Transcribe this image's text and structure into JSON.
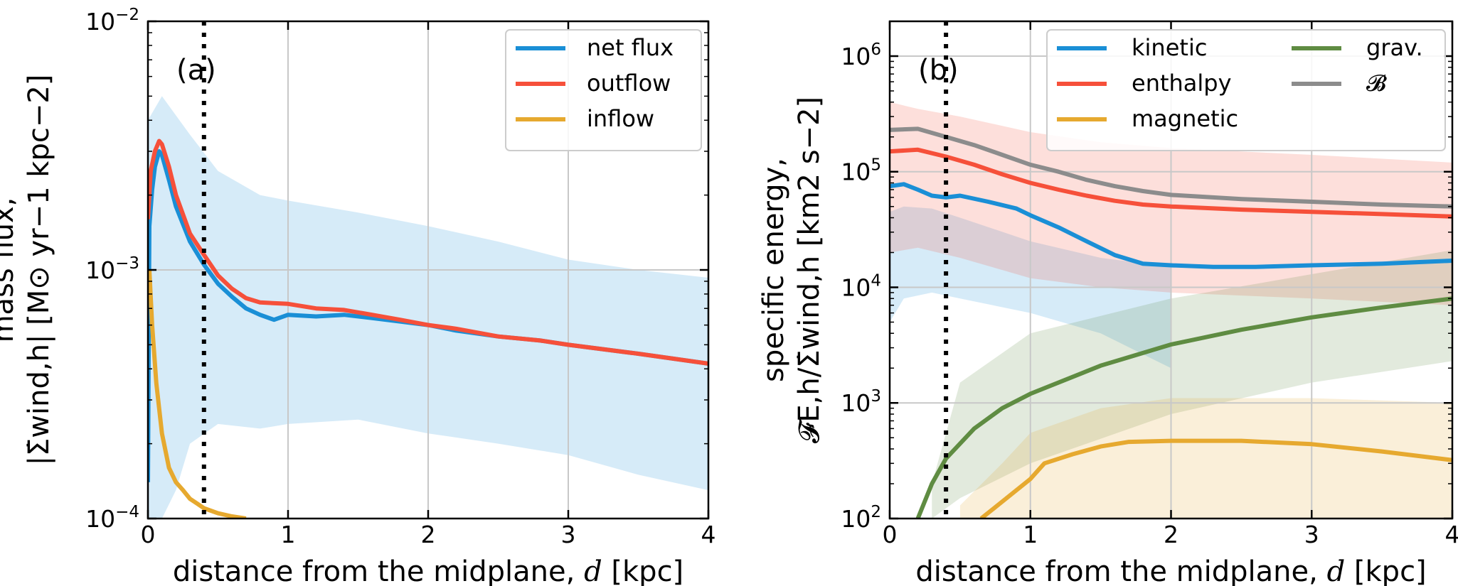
{
  "chart_data": [
    {
      "type": "line",
      "panel_label": "(a)",
      "xlabel": "distance from the midplane, d [kpc]",
      "ylabel_line1": "mass flux,",
      "ylabel_line2": "|Σ̇wind,h| [M⊙ yr−1 kpc−2]",
      "xlim": [
        0,
        4
      ],
      "ylim": [
        0.0001,
        0.01
      ],
      "yscale": "log",
      "xticks": [
        "0",
        "1",
        "2",
        "3",
        "4"
      ],
      "yticks": [
        {
          "base": "10",
          "exp": "−4",
          "value": 0.0001
        },
        {
          "base": "10",
          "exp": "−3",
          "value": 0.001
        },
        {
          "base": "10",
          "exp": "−2",
          "value": 0.01
        }
      ],
      "grid": true,
      "legend_position": "top-right",
      "vline_x": 0.4,
      "series": [
        {
          "name": "net flux",
          "color": "#1a8fd6",
          "points": [
            [
              0,
              0.00014
            ],
            [
              0.01,
              0.0015
            ],
            [
              0.03,
              0.0021
            ],
            [
              0.05,
              0.0026
            ],
            [
              0.08,
              0.003
            ],
            [
              0.1,
              0.0029
            ],
            [
              0.15,
              0.0023
            ],
            [
              0.2,
              0.0018
            ],
            [
              0.3,
              0.0013
            ],
            [
              0.4,
              0.00105
            ],
            [
              0.5,
              0.00088
            ],
            [
              0.6,
              0.00078
            ],
            [
              0.7,
              0.0007
            ],
            [
              0.8,
              0.00066
            ],
            [
              0.9,
              0.00063
            ],
            [
              1.0,
              0.00066
            ],
            [
              1.2,
              0.00065
            ],
            [
              1.4,
              0.00066
            ],
            [
              1.6,
              0.00064
            ],
            [
              1.8,
              0.00062
            ],
            [
              2.0,
              0.0006
            ],
            [
              2.2,
              0.00057
            ],
            [
              2.5,
              0.00054
            ],
            [
              2.8,
              0.00052
            ],
            [
              3.0,
              0.0005
            ],
            [
              3.5,
              0.00046
            ],
            [
              4.0,
              0.00042
            ]
          ]
        },
        {
          "name": "outflow",
          "color": "#f6503a",
          "points": [
            [
              0,
              0.0016
            ],
            [
              0.02,
              0.0025
            ],
            [
              0.05,
              0.003
            ],
            [
              0.08,
              0.0033
            ],
            [
              0.1,
              0.0032
            ],
            [
              0.15,
              0.0026
            ],
            [
              0.2,
              0.002
            ],
            [
              0.3,
              0.0014
            ],
            [
              0.4,
              0.00115
            ],
            [
              0.5,
              0.00095
            ],
            [
              0.6,
              0.00084
            ],
            [
              0.7,
              0.00077
            ],
            [
              0.8,
              0.00074
            ],
            [
              1.0,
              0.00073
            ],
            [
              1.2,
              0.0007
            ],
            [
              1.4,
              0.00069
            ],
            [
              1.6,
              0.00066
            ],
            [
              1.8,
              0.00063
            ],
            [
              2.0,
              0.0006
            ],
            [
              2.2,
              0.00058
            ],
            [
              2.5,
              0.00054
            ],
            [
              2.8,
              0.00052
            ],
            [
              3.0,
              0.0005
            ],
            [
              3.5,
              0.00046
            ],
            [
              4.0,
              0.00042
            ]
          ]
        },
        {
          "name": "inflow",
          "color": "#e6a92f",
          "points": [
            [
              0.01,
              0.001
            ],
            [
              0.03,
              0.0006
            ],
            [
              0.06,
              0.00035
            ],
            [
              0.1,
              0.00022
            ],
            [
              0.15,
              0.00016
            ],
            [
              0.2,
              0.00014
            ],
            [
              0.25,
              0.00013
            ],
            [
              0.3,
              0.00012
            ],
            [
              0.35,
              0.000115
            ],
            [
              0.4,
              0.00011
            ],
            [
              0.5,
              0.000105
            ],
            [
              0.6,
              0.000102
            ],
            [
              0.7,
              0.0001
            ]
          ]
        }
      ],
      "band": {
        "color": "#1a8fd6",
        "upper": [
          [
            0,
            0.004
          ],
          [
            0.1,
            0.005
          ],
          [
            0.3,
            0.0035
          ],
          [
            0.5,
            0.0025
          ],
          [
            0.8,
            0.002
          ],
          [
            1.0,
            0.0019
          ],
          [
            1.5,
            0.0017
          ],
          [
            2.0,
            0.0015
          ],
          [
            2.5,
            0.0013
          ],
          [
            3.0,
            0.0011
          ],
          [
            3.5,
            0.001
          ],
          [
            4.0,
            0.00093
          ]
        ],
        "lower": [
          [
            0,
            0.0001
          ],
          [
            0.1,
            0.0001
          ],
          [
            0.2,
            0.00013
          ],
          [
            0.3,
            0.0002
          ],
          [
            0.5,
            0.00024
          ],
          [
            0.8,
            0.00023
          ],
          [
            1.0,
            0.00024
          ],
          [
            1.5,
            0.00025
          ],
          [
            2.0,
            0.00022
          ],
          [
            2.5,
            0.0002
          ],
          [
            3.0,
            0.00018
          ],
          [
            3.5,
            0.00015
          ],
          [
            4.0,
            0.00013
          ]
        ]
      }
    },
    {
      "type": "line",
      "panel_label": "(b)",
      "xlabel": "distance from the midplane, d [kpc]",
      "ylabel_line1": "specific energy,",
      "ylabel_line2": "𝓕E,h/Σ̇wind,h [km2 s−2]",
      "xlim": [
        0,
        4
      ],
      "ylim": [
        100,
        2000000
      ],
      "yscale": "log",
      "xticks": [
        "0",
        "1",
        "2",
        "3",
        "4"
      ],
      "yticks": [
        {
          "base": "10",
          "exp": "2",
          "value": 100
        },
        {
          "base": "10",
          "exp": "3",
          "value": 1000
        },
        {
          "base": "10",
          "exp": "4",
          "value": 10000
        },
        {
          "base": "10",
          "exp": "5",
          "value": 100000
        },
        {
          "base": "10",
          "exp": "6",
          "value": 1000000
        }
      ],
      "grid": true,
      "legend_position": "top-right",
      "vline_x": 0.4,
      "series": [
        {
          "name": "kinetic",
          "color": "#1a8fd6",
          "points": [
            [
              0,
              75000
            ],
            [
              0.1,
              78000
            ],
            [
              0.2,
              70000
            ],
            [
              0.3,
              62000
            ],
            [
              0.4,
              60000
            ],
            [
              0.5,
              62000
            ],
            [
              0.7,
              55000
            ],
            [
              0.9,
              48000
            ],
            [
              1.0,
              42000
            ],
            [
              1.2,
              33000
            ],
            [
              1.4,
              25000
            ],
            [
              1.6,
              19000
            ],
            [
              1.8,
              16000
            ],
            [
              2.0,
              15500
            ],
            [
              2.3,
              15000
            ],
            [
              2.6,
              15000
            ],
            [
              3.0,
              15500
            ],
            [
              3.5,
              16000
            ],
            [
              4.0,
              17000
            ]
          ]
        },
        {
          "name": "enthalpy",
          "color": "#f6503a",
          "points": [
            [
              0,
              150000
            ],
            [
              0.2,
              155000
            ],
            [
              0.4,
              135000
            ],
            [
              0.6,
              115000
            ],
            [
              0.8,
              95000
            ],
            [
              1.0,
              80000
            ],
            [
              1.2,
              70000
            ],
            [
              1.4,
              62000
            ],
            [
              1.6,
              56000
            ],
            [
              1.8,
              52000
            ],
            [
              2.0,
              50000
            ],
            [
              2.5,
              47000
            ],
            [
              3.0,
              45000
            ],
            [
              3.5,
              43000
            ],
            [
              4.0,
              41000
            ]
          ]
        },
        {
          "name": "magnetic",
          "color": "#e6a92f",
          "points": [
            [
              0.65,
              100
            ],
            [
              0.8,
              140
            ],
            [
              1.0,
              220
            ],
            [
              1.1,
              300
            ],
            [
              1.3,
              360
            ],
            [
              1.5,
              420
            ],
            [
              1.7,
              460
            ],
            [
              2.0,
              470
            ],
            [
              2.5,
              470
            ],
            [
              3.0,
              440
            ],
            [
              3.5,
              380
            ],
            [
              4.0,
              320
            ]
          ]
        },
        {
          "name": "grav.",
          "color": "#5f8c42",
          "points": [
            [
              0.2,
              100
            ],
            [
              0.3,
              200
            ],
            [
              0.4,
              330
            ],
            [
              0.6,
              600
            ],
            [
              0.8,
              900
            ],
            [
              1.0,
              1200
            ],
            [
              1.5,
              2100
            ],
            [
              2.0,
              3200
            ],
            [
              2.5,
              4300
            ],
            [
              3.0,
              5500
            ],
            [
              3.5,
              6700
            ],
            [
              4.0,
              8000
            ]
          ]
        },
        {
          "name": "𝓑",
          "color": "#8c8c8c",
          "points": [
            [
              0,
              230000
            ],
            [
              0.2,
              235000
            ],
            [
              0.4,
              200000
            ],
            [
              0.6,
              170000
            ],
            [
              0.8,
              140000
            ],
            [
              1.0,
              115000
            ],
            [
              1.2,
              100000
            ],
            [
              1.4,
              85000
            ],
            [
              1.6,
              75000
            ],
            [
              1.8,
              68000
            ],
            [
              2.0,
              63000
            ],
            [
              2.5,
              58000
            ],
            [
              3.0,
              55000
            ],
            [
              3.5,
              52000
            ],
            [
              4.0,
              50000
            ]
          ]
        }
      ],
      "bands": [
        {
          "color": "#1a8fd6",
          "upper": [
            [
              0,
              45000
            ],
            [
              0.1,
              50000
            ],
            [
              0.3,
              48000
            ],
            [
              0.5,
              40000
            ],
            [
              1.0,
              25000
            ],
            [
              1.5,
              18000
            ],
            [
              2.0,
              15000
            ]
          ],
          "lower": [
            [
              0,
              5000
            ],
            [
              0.1,
              8000
            ],
            [
              0.3,
              9000
            ],
            [
              0.5,
              8000
            ],
            [
              1.0,
              6000
            ],
            [
              1.5,
              4000
            ],
            [
              2.0,
              2000
            ]
          ]
        },
        {
          "color": "#f6503a",
          "upper": [
            [
              0,
              400000
            ],
            [
              0.2,
              350000
            ],
            [
              0.5,
              300000
            ],
            [
              1.0,
              220000
            ],
            [
              1.5,
              180000
            ],
            [
              2.0,
              160000
            ],
            [
              3.0,
              140000
            ],
            [
              4.0,
              120000
            ]
          ],
          "lower": [
            [
              0,
              20000
            ],
            [
              0.2,
              22000
            ],
            [
              0.5,
              18000
            ],
            [
              1.0,
              12000
            ],
            [
              1.5,
              10000
            ],
            [
              2.0,
              9000
            ],
            [
              3.0,
              8000
            ],
            [
              4.0,
              7000
            ]
          ]
        },
        {
          "color": "#5f8c42",
          "upper": [
            [
              0.3,
              200
            ],
            [
              0.5,
              1500
            ],
            [
              1.0,
              4000
            ],
            [
              2.0,
              8000
            ],
            [
              3.0,
              13000
            ],
            [
              4.0,
              21000
            ]
          ],
          "lower": [
            [
              0.3,
              100
            ],
            [
              0.5,
              150
            ],
            [
              1.0,
              300
            ],
            [
              2.0,
              800
            ],
            [
              3.0,
              1500
            ],
            [
              4.0,
              2300
            ]
          ]
        },
        {
          "color": "#e6a92f",
          "upper": [
            [
              0.5,
              130
            ],
            [
              0.8,
              300
            ],
            [
              1.0,
              550
            ],
            [
              1.5,
              900
            ],
            [
              2.0,
              1100
            ],
            [
              3.0,
              1100
            ],
            [
              4.0,
              1000
            ]
          ],
          "lower": [
            [
              0.5,
              100
            ],
            [
              1.0,
              100
            ],
            [
              2.0,
              100
            ],
            [
              4.0,
              100
            ]
          ]
        }
      ],
      "legend_columns": 2
    }
  ]
}
